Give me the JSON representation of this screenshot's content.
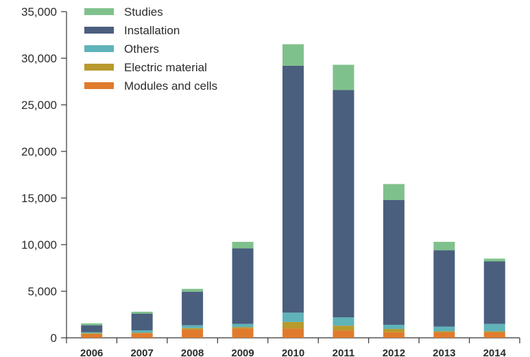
{
  "chart_data": {
    "type": "bar",
    "stacked": true,
    "categories": [
      "2006",
      "2007",
      "2008",
      "2009",
      "2010",
      "2011",
      "2012",
      "2013",
      "2014"
    ],
    "ylim": [
      0,
      35000
    ],
    "yticks": [
      0,
      5000,
      10000,
      15000,
      20000,
      25000,
      30000,
      35000
    ],
    "ytick_labels": [
      "0",
      "5,000",
      "10,000",
      "15,000",
      "20,000",
      "25,000",
      "30,000",
      "35,000"
    ],
    "grid": false,
    "legend_position": "top-left",
    "series": [
      {
        "name": "Modules and cells",
        "color": "#e07b2e",
        "values": [
          400,
          500,
          900,
          1000,
          1000,
          800,
          600,
          600,
          600
        ]
      },
      {
        "name": "Electric material",
        "color": "#b89a2e",
        "values": [
          100,
          50,
          150,
          150,
          700,
          500,
          350,
          100,
          100
        ]
      },
      {
        "name": "Others",
        "color": "#5fb3b9",
        "values": [
          100,
          250,
          300,
          350,
          1000,
          900,
          450,
          500,
          800
        ]
      },
      {
        "name": "Installation",
        "color": "#4a5e7e",
        "values": [
          750,
          1800,
          3600,
          8100,
          26500,
          24400,
          13400,
          8200,
          6700
        ]
      },
      {
        "name": "Studies",
        "color": "#7fc18c",
        "values": [
          200,
          200,
          300,
          700,
          2300,
          2700,
          1700,
          900,
          300
        ]
      }
    ],
    "legend_order": [
      "Studies",
      "Installation",
      "Others",
      "Electric material",
      "Modules and cells"
    ]
  }
}
